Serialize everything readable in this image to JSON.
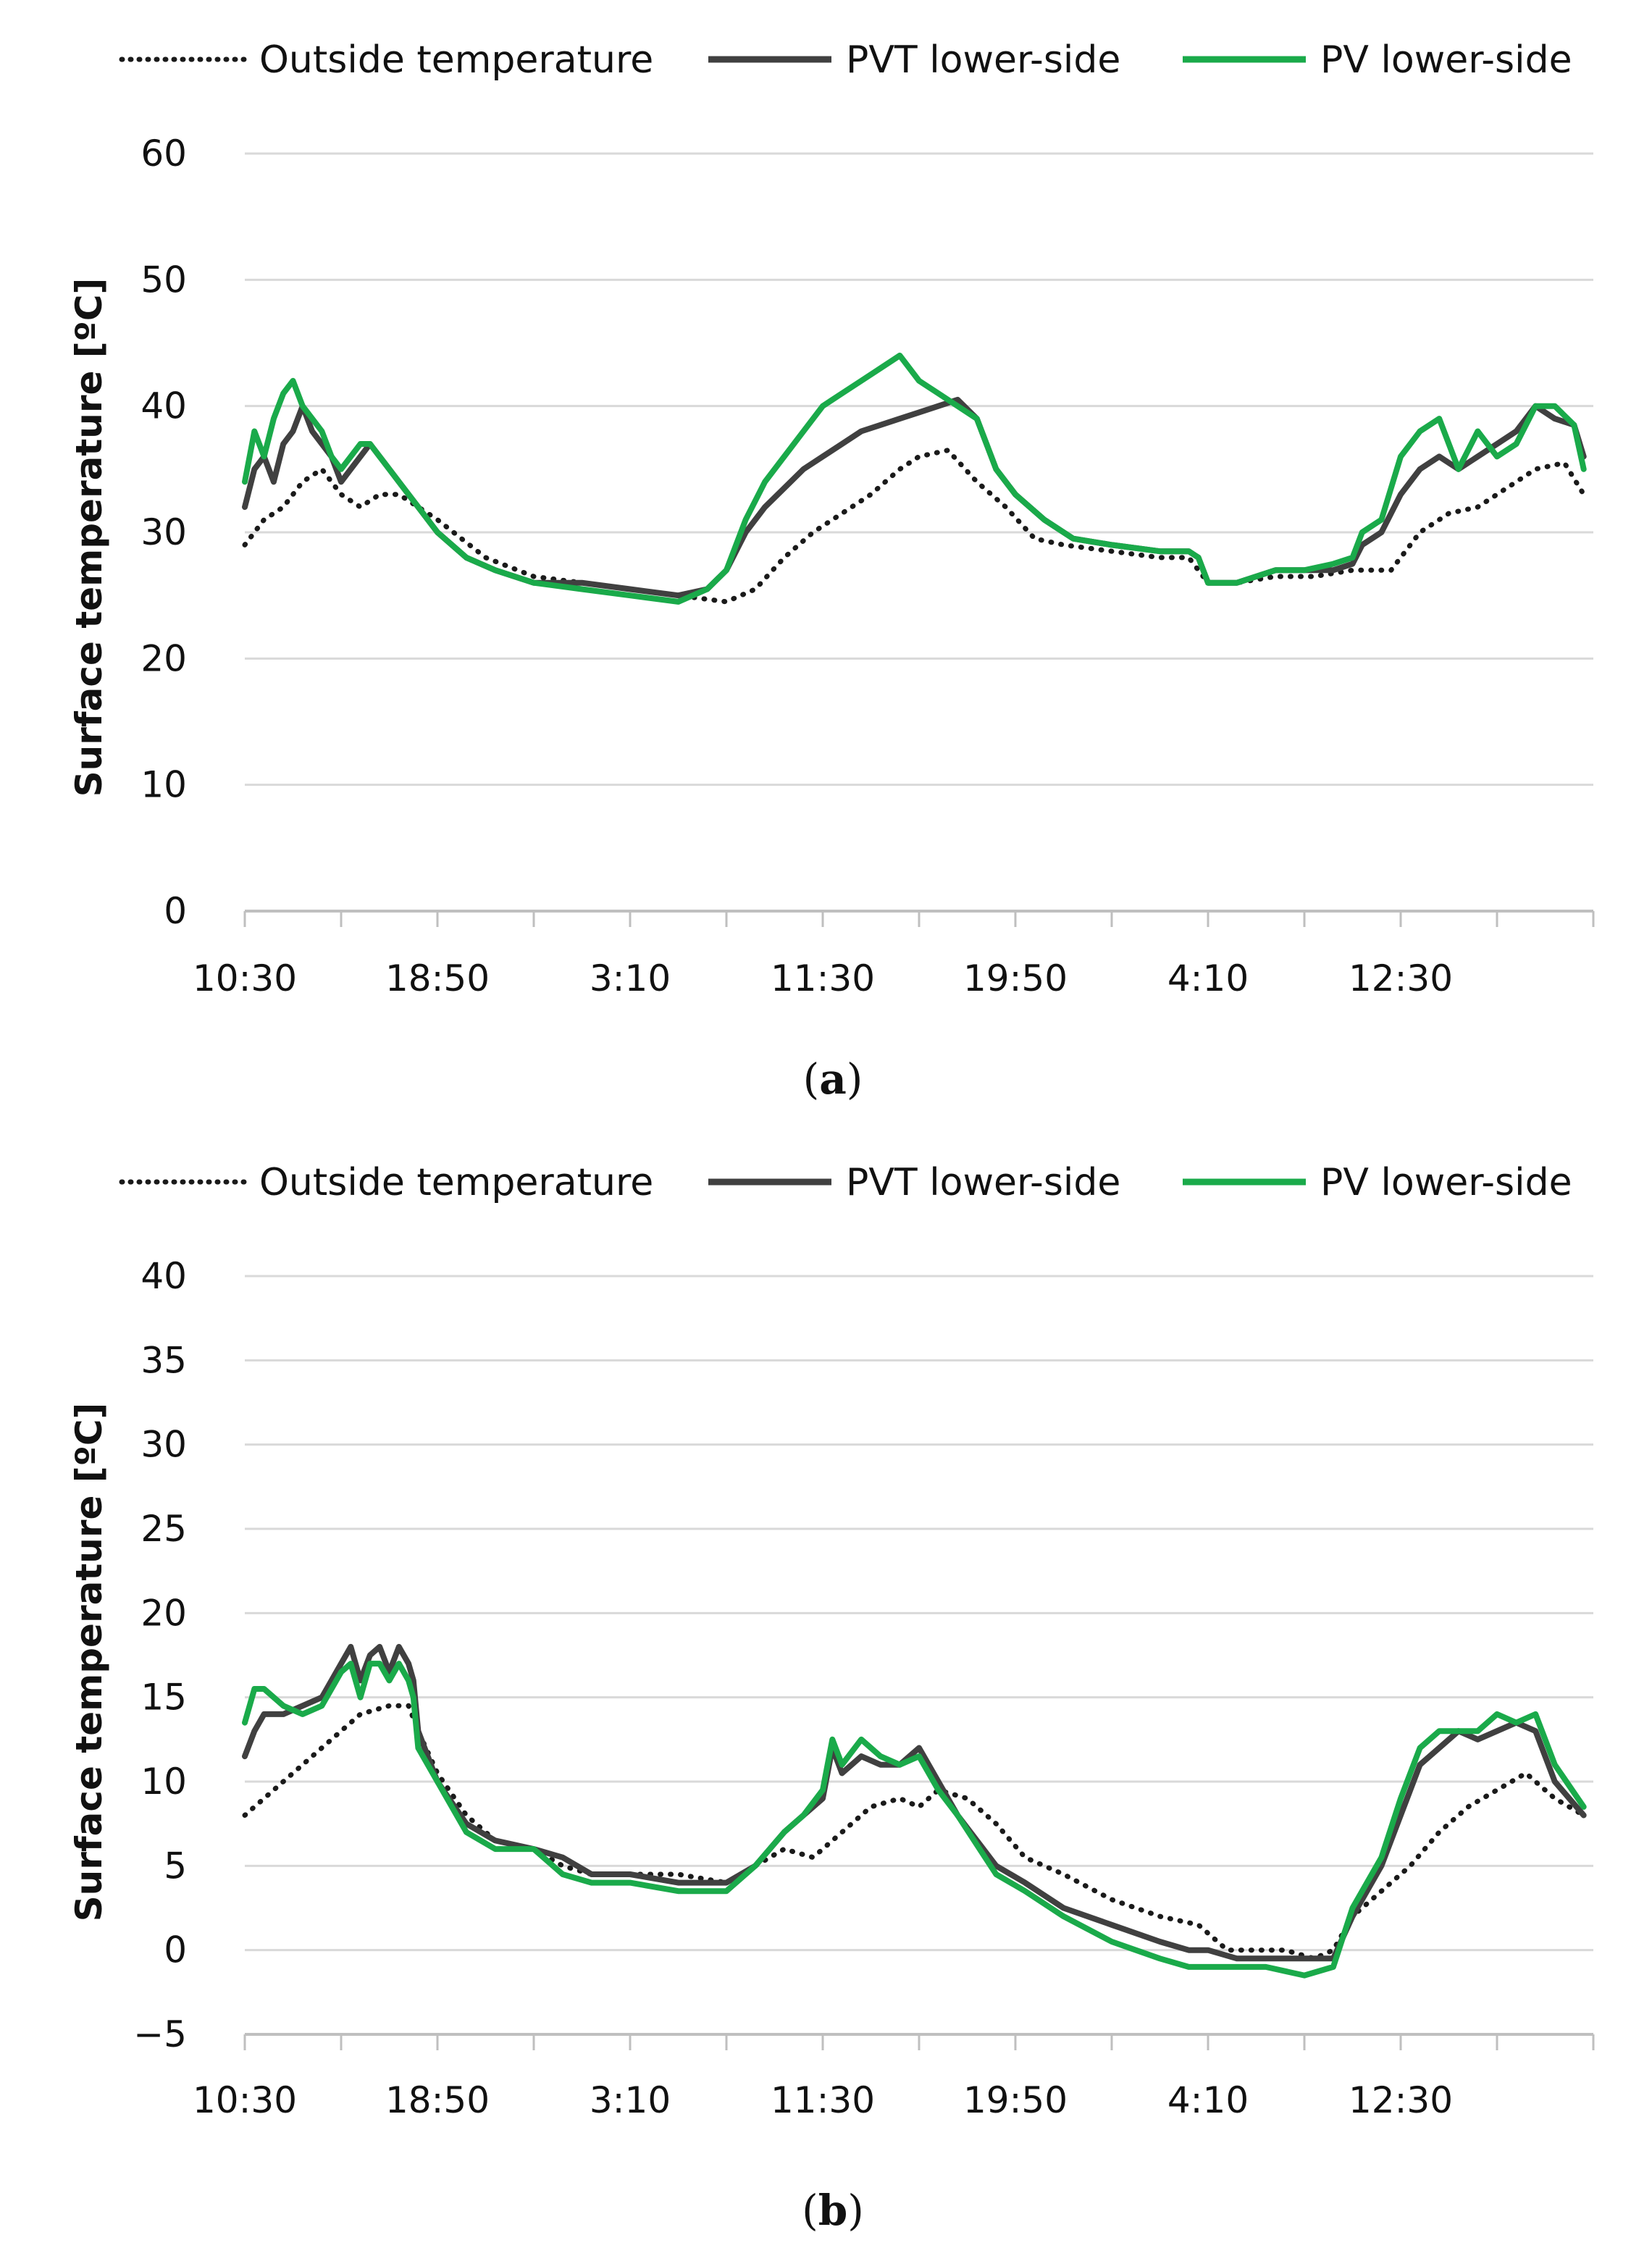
{
  "colors": {
    "outside": "#1a1a1a",
    "pvt": "#404040",
    "pv": "#1aaa4a",
    "grid": "#d9d9d9",
    "axis": "#bfbfbf"
  },
  "chart_data": [
    {
      "type": "line",
      "caption_letter": "a",
      "ylabel": "Surface temperature [ºC]",
      "xlabel": "",
      "ylim": [
        0,
        60
      ],
      "yticks": [
        0,
        10,
        20,
        30,
        40,
        50,
        60
      ],
      "xtick_labels": [
        "10:30",
        "18:50",
        "3:10",
        "11:30",
        "19:50",
        "4:10",
        "12:30"
      ],
      "x_label_positions": [
        0,
        2,
        4,
        6,
        8,
        10,
        12
      ],
      "x_tick_count": 14,
      "x_max": 14,
      "legend": [
        "Outside temperature",
        "PVT lower-side",
        "PV lower-side"
      ],
      "series": [
        {
          "name": "Outside temperature",
          "style": "dotted",
          "x": [
            0,
            0.2,
            0.4,
            0.6,
            0.8,
            1.0,
            1.2,
            1.4,
            1.6,
            1.8,
            2.0,
            2.5,
            3.0,
            3.5,
            4.0,
            4.5,
            5.0,
            5.3,
            5.6,
            5.9,
            6.2,
            6.5,
            6.8,
            7.0,
            7.3,
            7.6,
            7.9,
            8.2,
            8.5,
            9.0,
            9.5,
            9.8,
            10.0,
            10.3,
            10.7,
            11.1,
            11.5,
            11.9,
            12.2,
            12.5,
            12.8,
            13.1,
            13.4,
            13.7,
            13.9
          ],
          "y": [
            29,
            31,
            32,
            34,
            35,
            33,
            32,
            33,
            33,
            32,
            31,
            28,
            26.5,
            26,
            25.5,
            25,
            24.5,
            25.5,
            28,
            30,
            31.5,
            33,
            35,
            36,
            36.5,
            34,
            32,
            29.5,
            29,
            28.5,
            28,
            28,
            26,
            26,
            26.5,
            26.5,
            27,
            27,
            30,
            31.5,
            32,
            33.5,
            35,
            35.5,
            33
          ]
        },
        {
          "name": "PVT lower-side",
          "style": "solid",
          "x": [
            0,
            0.1,
            0.2,
            0.3,
            0.4,
            0.5,
            0.6,
            0.7,
            0.8,
            0.9,
            1.0,
            1.1,
            1.2,
            1.3,
            1.4,
            1.5,
            1.6,
            1.8,
            2.0,
            2.3,
            2.6,
            3.0,
            3.5,
            4.0,
            4.5,
            4.8,
            5.0,
            5.2,
            5.4,
            5.6,
            5.8,
            6.0,
            6.2,
            6.4,
            6.6,
            6.8,
            7.0,
            7.2,
            7.4,
            7.6,
            7.8,
            8.0,
            8.3,
            8.6,
            9.0,
            9.5,
            9.8,
            9.9,
            10.0,
            10.3,
            10.7,
            11.0,
            11.3,
            11.5,
            11.6,
            11.8,
            12.0,
            12.2,
            12.4,
            12.6,
            12.8,
            13.0,
            13.2,
            13.4,
            13.6,
            13.8,
            13.9
          ],
          "y": [
            32,
            35,
            36,
            34,
            37,
            38,
            40,
            38,
            37,
            36,
            34,
            35,
            36,
            37,
            36,
            35,
            34,
            32,
            30,
            28,
            27,
            26,
            26,
            25.5,
            25,
            25.5,
            27,
            30,
            32,
            33.5,
            35,
            36,
            37,
            38,
            38.5,
            39,
            39.5,
            40,
            40.5,
            39,
            35,
            33,
            31,
            29.5,
            29,
            28.5,
            28.5,
            28,
            26,
            26,
            27,
            27,
            27,
            27.5,
            29,
            30,
            33,
            35,
            36,
            35,
            36,
            37,
            38,
            40,
            39,
            38.5,
            36
          ]
        },
        {
          "name": "PV lower-side",
          "style": "solid",
          "x": [
            0,
            0.1,
            0.2,
            0.3,
            0.4,
            0.5,
            0.6,
            0.7,
            0.8,
            0.9,
            1.0,
            1.1,
            1.2,
            1.3,
            1.4,
            1.5,
            1.6,
            1.8,
            2.0,
            2.3,
            2.6,
            3.0,
            3.5,
            4.0,
            4.5,
            4.8,
            5.0,
            5.2,
            5.4,
            5.6,
            5.8,
            6.0,
            6.2,
            6.4,
            6.6,
            6.8,
            7.0,
            7.2,
            7.4,
            7.6,
            7.8,
            8.0,
            8.3,
            8.6,
            9.0,
            9.5,
            9.8,
            9.9,
            10.0,
            10.3,
            10.7,
            11.0,
            11.3,
            11.5,
            11.6,
            11.8,
            12.0,
            12.2,
            12.4,
            12.6,
            12.8,
            13.0,
            13.2,
            13.4,
            13.6,
            13.8,
            13.9
          ],
          "y": [
            34,
            38,
            36,
            39,
            41,
            42,
            40,
            39,
            38,
            36,
            35,
            36,
            37,
            37,
            36,
            35,
            34,
            32,
            30,
            28,
            27,
            26,
            25.5,
            25,
            24.5,
            25.5,
            27,
            31,
            34,
            36,
            38,
            40,
            41,
            42,
            43,
            44,
            42,
            41,
            40,
            39,
            35,
            33,
            31,
            29.5,
            29,
            28.5,
            28.5,
            28,
            26,
            26,
            27,
            27,
            27.5,
            28,
            30,
            31,
            36,
            38,
            39,
            35,
            38,
            36,
            37,
            40,
            40,
            38.5,
            35
          ]
        }
      ]
    },
    {
      "type": "line",
      "caption_letter": "b",
      "ylabel": "Surface temperature [ºC]",
      "xlabel": "",
      "ylim": [
        -5,
        40
      ],
      "yticks": [
        -5,
        0,
        5,
        10,
        15,
        20,
        25,
        30,
        35,
        40
      ],
      "ytick_labels": [
        "−5",
        "0",
        "5",
        "10",
        "15",
        "20",
        "25",
        "30",
        "35",
        "40"
      ],
      "xtick_labels": [
        "10:30",
        "18:50",
        "3:10",
        "11:30",
        "19:50",
        "4:10",
        "12:30"
      ],
      "x_label_positions": [
        0,
        2,
        4,
        6,
        8,
        10,
        12
      ],
      "x_tick_count": 14,
      "x_max": 14,
      "legend": [
        "Outside temperature",
        "PVT lower-side",
        "PV lower-side"
      ],
      "series": [
        {
          "name": "Outside temperature",
          "style": "dotted",
          "x": [
            0,
            0.3,
            0.6,
            0.9,
            1.2,
            1.5,
            1.7,
            1.8,
            2.0,
            2.3,
            2.6,
            3.0,
            3.3,
            3.6,
            4.0,
            4.5,
            5.0,
            5.3,
            5.6,
            5.9,
            6.2,
            6.5,
            6.8,
            7.0,
            7.2,
            7.5,
            7.8,
            8.1,
            8.5,
            9.0,
            9.5,
            9.9,
            10.2,
            10.5,
            10.8,
            11.1,
            11.3,
            11.5,
            11.8,
            12.1,
            12.4,
            12.7,
            13.0,
            13.3,
            13.6,
            13.9
          ],
          "y": [
            8,
            9.5,
            11,
            12.5,
            14,
            14.5,
            14.5,
            13,
            10.5,
            8,
            6.5,
            6,
            5,
            4.5,
            4.5,
            4.5,
            4,
            5,
            6,
            5.5,
            7,
            8.5,
            9,
            8.5,
            9.5,
            9,
            7.5,
            5.5,
            4.5,
            3,
            2,
            1.5,
            0,
            0,
            0,
            -0.5,
            0,
            2,
            3.5,
            5,
            7,
            8.5,
            9.5,
            10.5,
            9,
            8
          ]
        },
        {
          "name": "PVT lower-side",
          "style": "solid",
          "x": [
            0,
            0.1,
            0.2,
            0.4,
            0.6,
            0.8,
            1.0,
            1.1,
            1.2,
            1.3,
            1.4,
            1.5,
            1.6,
            1.7,
            1.75,
            1.8,
            2.0,
            2.3,
            2.6,
            3.0,
            3.3,
            3.6,
            4.0,
            4.5,
            5.0,
            5.3,
            5.6,
            5.8,
            6.0,
            6.1,
            6.2,
            6.4,
            6.6,
            6.8,
            7.0,
            7.2,
            7.4,
            7.8,
            8.1,
            8.5,
            9.0,
            9.5,
            9.8,
            10.0,
            10.3,
            10.6,
            11.0,
            11.3,
            11.5,
            11.8,
            12.0,
            12.2,
            12.4,
            12.6,
            12.8,
            13.0,
            13.2,
            13.4,
            13.6,
            13.9
          ],
          "y": [
            11.5,
            13,
            14,
            14,
            14.5,
            15,
            17,
            18,
            16,
            17.5,
            18,
            16.5,
            18,
            17,
            16,
            13,
            10,
            7.5,
            6.5,
            6,
            5.5,
            4.5,
            4.5,
            4,
            4,
            5,
            7,
            8,
            9,
            12,
            10.5,
            11.5,
            11,
            11,
            12,
            10,
            8,
            5,
            4,
            2.5,
            1.5,
            0.5,
            0,
            0,
            -0.5,
            -0.5,
            -0.5,
            -0.5,
            2,
            5,
            8,
            11,
            12,
            13,
            12.5,
            13,
            13.5,
            13,
            10,
            8
          ]
        },
        {
          "name": "PV lower-side",
          "style": "solid",
          "x": [
            0,
            0.1,
            0.2,
            0.4,
            0.6,
            0.8,
            1.0,
            1.1,
            1.2,
            1.3,
            1.4,
            1.5,
            1.6,
            1.7,
            1.75,
            1.8,
            2.0,
            2.3,
            2.6,
            3.0,
            3.3,
            3.6,
            4.0,
            4.5,
            5.0,
            5.3,
            5.6,
            5.8,
            6.0,
            6.1,
            6.2,
            6.4,
            6.6,
            6.8,
            7.0,
            7.2,
            7.4,
            7.8,
            8.1,
            8.5,
            9.0,
            9.5,
            9.8,
            10.0,
            10.3,
            10.6,
            11.0,
            11.3,
            11.5,
            11.8,
            12.0,
            12.2,
            12.4,
            12.6,
            12.8,
            13.0,
            13.2,
            13.4,
            13.6,
            13.9
          ],
          "y": [
            13.5,
            15.5,
            15.5,
            14.5,
            14,
            14.5,
            16.5,
            17,
            15,
            17,
            17,
            16,
            17,
            16,
            15,
            12,
            10,
            7,
            6,
            6,
            4.5,
            4,
            4,
            3.5,
            3.5,
            5,
            7,
            8,
            9.5,
            12.5,
            11,
            12.5,
            11.5,
            11,
            11.5,
            9.5,
            8,
            4.5,
            3.5,
            2,
            0.5,
            -0.5,
            -1,
            -1,
            -1,
            -1,
            -1.5,
            -1,
            2.5,
            5.5,
            9,
            12,
            13,
            13,
            13,
            14,
            13.5,
            14,
            11,
            8.5
          ]
        }
      ]
    }
  ]
}
